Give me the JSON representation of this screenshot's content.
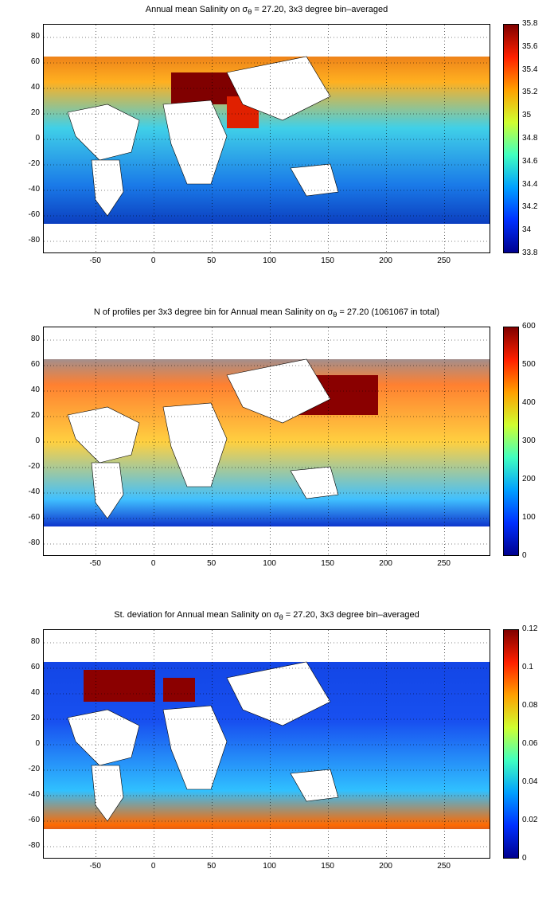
{
  "panels": [
    {
      "title_pre": "Annual mean Salinity on ",
      "title_sigma": "σ",
      "title_sub": "θ",
      "title_post": " = 27.20, 3x3 degree bin–averaged",
      "colorbar": {
        "ticks": [
          "35.8",
          "35.6",
          "35.4",
          "35.2",
          "35",
          "34.8",
          "34.6",
          "34.4",
          "34.2",
          "34",
          "33.8"
        ]
      }
    },
    {
      "title_pre": "N of profiles per 3x3 degree bin for Annual mean Salinity on ",
      "title_sigma": "σ",
      "title_sub": "θ",
      "title_post": " = 27.20 (1061067 in total)",
      "colorbar": {
        "ticks": [
          "600",
          "500",
          "400",
          "300",
          "200",
          "100",
          "0"
        ]
      }
    },
    {
      "title_pre": "St. deviation for Annual mean Salinity on ",
      "title_sigma": "σ",
      "title_sub": "θ",
      "title_post": " = 27.20, 3x3 degree bin–averaged",
      "colorbar": {
        "ticks": [
          "0.12",
          "0.1",
          "0.08",
          "0.06",
          "0.04",
          "0.02",
          "0"
        ]
      }
    }
  ],
  "x_ticks": [
    "-50",
    "0",
    "50",
    "100",
    "150",
    "200",
    "250"
  ],
  "y_ticks": [
    "80",
    "60",
    "40",
    "20",
    "0",
    "-20",
    "-40",
    "-60",
    "-80"
  ],
  "colors": {
    "land": "#ffffff",
    "grid": "#000000"
  }
}
